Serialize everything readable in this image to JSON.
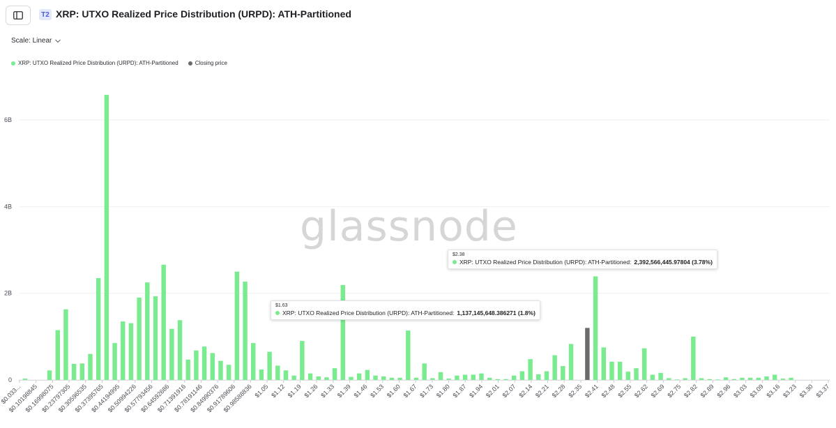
{
  "header": {
    "tier_badge": "T2",
    "title": "XRP: UTXO Realized Price Distribution (URPD): ATH-Partitioned"
  },
  "controls": {
    "scale_label": "Scale: Linear"
  },
  "legend": [
    {
      "label": "XRP: UTXO Realized Price Distribution (URPD): ATH-Partitioned",
      "color": "#7aeb8f"
    },
    {
      "label": "Closing price",
      "color": "#6b6b6b"
    }
  ],
  "watermark": "glassnode",
  "tooltips": [
    {
      "x": "$2.38",
      "series": "XRP: UTXO Realized Price Distribution (URPD): ATH-Partitioned:",
      "value": "2,392,566,445.97804 (3.78%)"
    },
    {
      "x": "$1.63",
      "series": "XRP: UTXO Realized Price Distribution (URPD): ATH-Partitioned:",
      "value": "1,137,145,648.386271 (1.8%)"
    }
  ],
  "chart_data": {
    "type": "bar",
    "ylim": [
      0,
      7000000000
    ],
    "yticks": [
      {
        "value": 0,
        "label": "0"
      },
      {
        "value": 2000000000,
        "label": "2B"
      },
      {
        "value": 4000000000,
        "label": "4B"
      },
      {
        "value": 6000000000,
        "label": "6B"
      }
    ],
    "xtick_labels": [
      "$0.033...",
      "$0.10198845",
      "$0.16998075",
      "$0.23797305",
      "$0.30596535",
      "$0.37395765",
      "$0.44194995",
      "$0.50994226",
      "$0.57793456",
      "$0.64592686",
      "$0.71391916",
      "$0.78191146",
      "$0.84990376",
      "$0.91789606",
      "$0.98588836",
      "$1.05",
      "$1.12",
      "$1.19",
      "$1.26",
      "$1.33",
      "$1.39",
      "$1.46",
      "$1.53",
      "$1.60",
      "$1.67",
      "$1.73",
      "$1.80",
      "$1.87",
      "$1.94",
      "$2.01",
      "$2.07",
      "$2.14",
      "$2.21",
      "$2.28",
      "$2.35",
      "$2.41",
      "$2.48",
      "$2.55",
      "$2.62",
      "$2.69",
      "$2.75",
      "$2.82",
      "$2.89",
      "$2.96",
      "$3.03",
      "$3.09",
      "$3.16",
      "$3.23",
      "$3.30",
      "$3.37"
    ],
    "closing_price_index": 69,
    "values": [
      0.03,
      0,
      0,
      0.22,
      1.15,
      1.63,
      0.37,
      0.38,
      0.6,
      2.35,
      6.58,
      0.85,
      1.35,
      1.31,
      1.9,
      2.25,
      1.93,
      2.66,
      1.18,
      1.38,
      0.47,
      0.68,
      0.77,
      0.62,
      0.44,
      0.35,
      2.5,
      2.27,
      0.85,
      0.24,
      0.65,
      0.33,
      0.22,
      0.1,
      0.9,
      0.15,
      0.08,
      0.06,
      0.27,
      2.19,
      0.07,
      0.15,
      0.23,
      0.1,
      0.08,
      0.05,
      0.05,
      1.14,
      0.05,
      0.38,
      0.04,
      0.18,
      0.03,
      0.1,
      0.12,
      0.12,
      0.15,
      0.05,
      0.02,
      0.02,
      0.1,
      0.2,
      0.48,
      0.13,
      0.2,
      0.57,
      0.32,
      0.83,
      0,
      0,
      2.39,
      0.75,
      0.42,
      0.42,
      0.19,
      0.27,
      0.73,
      0.12,
      0.16,
      0.04,
      0.01,
      0.04,
      1.0,
      0.04,
      0.02,
      0.01,
      0.06,
      0.02,
      0.05,
      0.05,
      0.05,
      0.08,
      0.12,
      0.03,
      0.05,
      0,
      0,
      0,
      0
    ],
    "value_unit_multiplier": 1000000000,
    "closing_price_value": 1.2
  }
}
